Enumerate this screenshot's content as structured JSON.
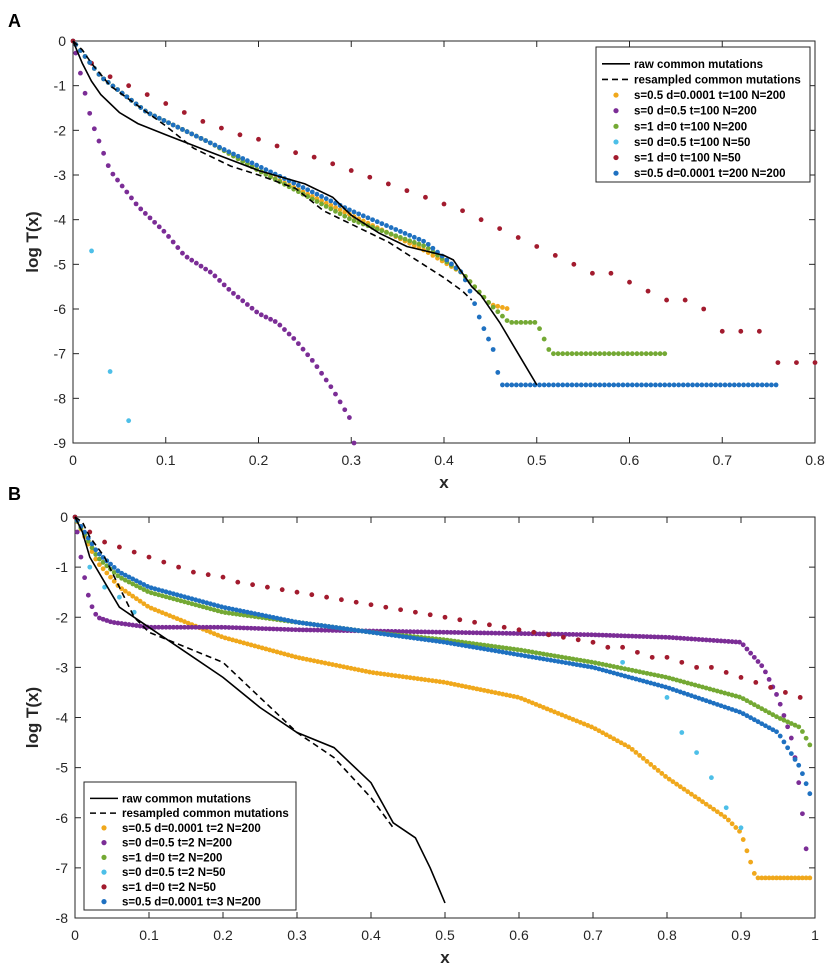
{
  "chart_data": [
    {
      "panel": "A",
      "type": "scatter",
      "xlabel": "x",
      "ylabel": "log T(x)",
      "xlim": [
        0,
        0.8
      ],
      "ylim": [
        -9,
        0
      ],
      "xticks": [
        "0",
        "0.1",
        "0.2",
        "0.3",
        "0.4",
        "0.5",
        "0.6",
        "0.7",
        "0.8"
      ],
      "yticks": [
        "0",
        "-1",
        "-2",
        "-3",
        "-4",
        "-5",
        "-6",
        "-7",
        "-8",
        "-9"
      ],
      "legend_position": "top-right",
      "lines": [
        {
          "name": "raw common mutations",
          "style": "solid",
          "color": "#000000",
          "x": [
            0,
            0.01,
            0.02,
            0.03,
            0.05,
            0.07,
            0.1,
            0.15,
            0.2,
            0.25,
            0.28,
            0.3,
            0.33,
            0.36,
            0.38,
            0.4,
            0.41,
            0.42,
            0.43,
            0.44,
            0.46,
            0.48,
            0.5
          ],
          "y": [
            0,
            -0.5,
            -0.9,
            -1.2,
            -1.6,
            -1.85,
            -2.1,
            -2.5,
            -2.9,
            -3.2,
            -3.5,
            -3.9,
            -4.3,
            -4.6,
            -4.7,
            -4.8,
            -4.9,
            -5.2,
            -5.5,
            -5.7,
            -6.3,
            -7.0,
            -7.7
          ]
        },
        {
          "name": "resampled common mutations",
          "style": "dashed",
          "color": "#000000",
          "x": [
            0,
            0.01,
            0.02,
            0.04,
            0.06,
            0.08,
            0.1,
            0.13,
            0.17,
            0.2,
            0.24,
            0.27,
            0.3,
            0.34,
            0.37,
            0.4,
            0.42,
            0.43
          ],
          "y": [
            0,
            -0.2,
            -0.5,
            -1.0,
            -1.3,
            -1.6,
            -1.9,
            -2.4,
            -2.8,
            -3.0,
            -3.3,
            -3.8,
            -4.1,
            -4.5,
            -4.9,
            -5.3,
            -5.6,
            -5.8
          ]
        }
      ],
      "series": [
        {
          "name": "s=0.5 d=0.0001 t=100 N=200",
          "color": "#f0a81c",
          "x0": 0.003,
          "x1": 0.47,
          "step": 0.005,
          "y": [
            [
              0,
              0
            ],
            [
              0.03,
              -0.8
            ],
            [
              0.08,
              -1.6
            ],
            [
              0.15,
              -2.3
            ],
            [
              0.2,
              -2.9
            ],
            [
              0.3,
              -3.9
            ],
            [
              0.38,
              -4.7
            ],
            [
              0.42,
              -5.2
            ],
            [
              0.45,
              -5.9
            ],
            [
              0.47,
              -6.0
            ]
          ]
        },
        {
          "name": "s=0 d=0.5 t=100 N=200",
          "color": "#7b2d96",
          "x0": 0.003,
          "x1": 0.303,
          "step": 0.005,
          "y": [
            [
              0,
              0
            ],
            [
              0.01,
              -0.9
            ],
            [
              0.02,
              -1.8
            ],
            [
              0.04,
              -2.9
            ],
            [
              0.07,
              -3.7
            ],
            [
              0.1,
              -4.3
            ],
            [
              0.12,
              -4.8
            ],
            [
              0.15,
              -5.2
            ],
            [
              0.17,
              -5.6
            ],
            [
              0.2,
              -6.1
            ],
            [
              0.22,
              -6.3
            ],
            [
              0.24,
              -6.7
            ],
            [
              0.26,
              -7.2
            ],
            [
              0.28,
              -7.8
            ],
            [
              0.3,
              -8.5
            ],
            [
              0.303,
              -9.0
            ]
          ]
        },
        {
          "name": "s=1 d=0 t=100 N=200",
          "color": "#74a934",
          "x0": 0.003,
          "x1": 0.64,
          "step": 0.005,
          "y": [
            [
              0,
              0
            ],
            [
              0.03,
              -0.8
            ],
            [
              0.08,
              -1.6
            ],
            [
              0.15,
              -2.3
            ],
            [
              0.2,
              -2.9
            ],
            [
              0.3,
              -4.0
            ],
            [
              0.38,
              -4.6
            ],
            [
              0.42,
              -5.2
            ],
            [
              0.45,
              -5.9
            ],
            [
              0.47,
              -6.3
            ],
            [
              0.5,
              -6.3
            ],
            [
              0.515,
              -7.0
            ],
            [
              0.64,
              -7.0
            ]
          ]
        },
        {
          "name": "s=0 d=0.5 t=100 N=50",
          "color": "#4dbfe8",
          "x": [
            0.0,
            0.02,
            0.04,
            0.06
          ],
          "y": [
            0,
            -4.7,
            -7.4,
            -8.5
          ]
        },
        {
          "name": "s=1 d=0 t=100 N=50",
          "color": "#a21b2e",
          "x": [
            0.0,
            0.02,
            0.04,
            0.06,
            0.08,
            0.1,
            0.12,
            0.14,
            0.16,
            0.18,
            0.2,
            0.22,
            0.24,
            0.26,
            0.28,
            0.3,
            0.32,
            0.34,
            0.36,
            0.38,
            0.4,
            0.42,
            0.44,
            0.46,
            0.48,
            0.5,
            0.52,
            0.54,
            0.56,
            0.58,
            0.6,
            0.62,
            0.64,
            0.66,
            0.68,
            0.7,
            0.72,
            0.74,
            0.76,
            0.78,
            0.8
          ],
          "y": [
            0,
            -0.5,
            -0.8,
            -1.0,
            -1.2,
            -1.4,
            -1.6,
            -1.8,
            -1.95,
            -2.1,
            -2.2,
            -2.35,
            -2.5,
            -2.6,
            -2.75,
            -2.9,
            -3.05,
            -3.2,
            -3.35,
            -3.5,
            -3.65,
            -3.8,
            -4.0,
            -4.2,
            -4.4,
            -4.6,
            -4.8,
            -5.0,
            -5.2,
            -5.2,
            -5.4,
            -5.6,
            -5.8,
            -5.8,
            -6.0,
            -6.5,
            -6.5,
            -6.5,
            -7.2,
            -7.2,
            -7.2
          ]
        },
        {
          "name": "s=0.5 d=0.0001 t=200 N=200",
          "color": "#1f71c1",
          "x0": 0.003,
          "x1": 0.76,
          "step": 0.005,
          "y": [
            [
              0,
              0
            ],
            [
              0.03,
              -0.8
            ],
            [
              0.08,
              -1.6
            ],
            [
              0.15,
              -2.3
            ],
            [
              0.2,
              -2.8
            ],
            [
              0.3,
              -3.8
            ],
            [
              0.38,
              -4.5
            ],
            [
              0.42,
              -5.2
            ],
            [
              0.43,
              -5.7
            ],
            [
              0.44,
              -6.3
            ],
            [
              0.455,
              -7.0
            ],
            [
              0.46,
              -7.7
            ],
            [
              0.76,
              -7.7
            ]
          ]
        }
      ]
    },
    {
      "panel": "B",
      "type": "scatter",
      "xlabel": "x",
      "ylabel": "log T(x)",
      "xlim": [
        0,
        1
      ],
      "ylim": [
        -8,
        0
      ],
      "xticks": [
        "0",
        "0.1",
        "0.2",
        "0.3",
        "0.4",
        "0.5",
        "0.6",
        "0.7",
        "0.8",
        "0.9",
        "1"
      ],
      "yticks": [
        "0",
        "-1",
        "-2",
        "-3",
        "-4",
        "-5",
        "-6",
        "-7",
        "-8"
      ],
      "legend_position": "bottom-left",
      "lines": [
        {
          "name": "raw common mutations",
          "style": "solid",
          "color": "#000000",
          "x": [
            0,
            0.01,
            0.02,
            0.04,
            0.06,
            0.08,
            0.1,
            0.15,
            0.2,
            0.25,
            0.3,
            0.35,
            0.4,
            0.43,
            0.46,
            0.48,
            0.5
          ],
          "y": [
            0,
            -0.3,
            -0.8,
            -1.3,
            -1.8,
            -2.0,
            -2.2,
            -2.7,
            -3.2,
            -3.8,
            -4.3,
            -4.6,
            -5.3,
            -6.1,
            -6.4,
            -7.0,
            -7.7
          ]
        },
        {
          "name": "resampled common mutations",
          "style": "dashed",
          "color": "#000000",
          "x": [
            0,
            0.01,
            0.02,
            0.04,
            0.06,
            0.08,
            0.1,
            0.15,
            0.2,
            0.25,
            0.3,
            0.35,
            0.4,
            0.43
          ],
          "y": [
            0,
            -0.1,
            -0.4,
            -0.8,
            -1.4,
            -2.0,
            -2.3,
            -2.6,
            -2.9,
            -3.6,
            -4.3,
            -4.8,
            -5.6,
            -6.2
          ]
        }
      ],
      "series": [
        {
          "name": "s=0.5 d=0.0001 t=2 N=200",
          "color": "#f0a81c",
          "x0": 0.003,
          "x1": 0.995,
          "step": 0.005,
          "y": [
            [
              0,
              0
            ],
            [
              0.03,
              -0.9
            ],
            [
              0.06,
              -1.4
            ],
            [
              0.1,
              -1.8
            ],
            [
              0.2,
              -2.4
            ],
            [
              0.3,
              -2.8
            ],
            [
              0.4,
              -3.1
            ],
            [
              0.5,
              -3.3
            ],
            [
              0.6,
              -3.6
            ],
            [
              0.7,
              -4.2
            ],
            [
              0.75,
              -4.6
            ],
            [
              0.8,
              -5.2
            ],
            [
              0.85,
              -5.7
            ],
            [
              0.88,
              -6.0
            ],
            [
              0.9,
              -6.3
            ],
            [
              0.92,
              -7.2
            ],
            [
              0.995,
              -7.2
            ]
          ]
        },
        {
          "name": "s=0 d=0.5 t=2 N=200",
          "color": "#7b2d96",
          "x0": 0.003,
          "x1": 0.99,
          "step": 0.005,
          "y": [
            [
              0,
              0
            ],
            [
              0.01,
              -1.0
            ],
            [
              0.02,
              -1.7
            ],
            [
              0.03,
              -2.0
            ],
            [
              0.05,
              -2.1
            ],
            [
              0.1,
              -2.2
            ],
            [
              0.2,
              -2.2
            ],
            [
              0.3,
              -2.25
            ],
            [
              0.5,
              -2.3
            ],
            [
              0.7,
              -2.35
            ],
            [
              0.8,
              -2.4
            ],
            [
              0.9,
              -2.5
            ],
            [
              0.93,
              -3.0
            ],
            [
              0.95,
              -3.6
            ],
            [
              0.97,
              -4.5
            ],
            [
              0.98,
              -5.5
            ],
            [
              0.99,
              -6.9
            ]
          ]
        },
        {
          "name": "s=1 d=0 t=2 N=200",
          "color": "#74a934",
          "x0": 0.003,
          "x1": 0.995,
          "step": 0.005,
          "y": [
            [
              0,
              0
            ],
            [
              0.03,
              -0.8
            ],
            [
              0.06,
              -1.2
            ],
            [
              0.1,
              -1.5
            ],
            [
              0.2,
              -1.9
            ],
            [
              0.3,
              -2.1
            ],
            [
              0.4,
              -2.3
            ],
            [
              0.5,
              -2.45
            ],
            [
              0.6,
              -2.65
            ],
            [
              0.7,
              -2.9
            ],
            [
              0.8,
              -3.2
            ],
            [
              0.9,
              -3.6
            ],
            [
              0.95,
              -4.0
            ],
            [
              0.98,
              -4.2
            ],
            [
              0.995,
              -4.6
            ]
          ]
        },
        {
          "name": "s=0 d=0.5 t=2 N=50",
          "color": "#4dbfe8",
          "x": [
            0.0,
            0.02,
            0.04,
            0.06,
            0.08,
            0.74,
            0.8,
            0.82,
            0.84,
            0.86,
            0.88,
            0.9
          ],
          "y": [
            0,
            -1.0,
            -1.4,
            -1.6,
            -1.9,
            -2.9,
            -3.6,
            -4.3,
            -4.7,
            -5.2,
            -5.8,
            -6.2
          ]
        },
        {
          "name": "s=1 d=0 t=2 N=50",
          "color": "#a21b2e",
          "x": [
            0.0,
            0.02,
            0.04,
            0.06,
            0.08,
            0.1,
            0.12,
            0.14,
            0.16,
            0.18,
            0.2,
            0.22,
            0.24,
            0.26,
            0.28,
            0.3,
            0.32,
            0.34,
            0.36,
            0.38,
            0.4,
            0.42,
            0.44,
            0.46,
            0.48,
            0.5,
            0.52,
            0.54,
            0.56,
            0.58,
            0.6,
            0.62,
            0.64,
            0.66,
            0.68,
            0.7,
            0.72,
            0.74,
            0.76,
            0.78,
            0.8,
            0.82,
            0.84,
            0.86,
            0.88,
            0.9,
            0.92,
            0.94,
            0.96,
            0.98
          ],
          "y": [
            0,
            -0.3,
            -0.5,
            -0.6,
            -0.7,
            -0.8,
            -0.9,
            -1.0,
            -1.1,
            -1.15,
            -1.2,
            -1.3,
            -1.35,
            -1.4,
            -1.45,
            -1.5,
            -1.55,
            -1.6,
            -1.65,
            -1.7,
            -1.75,
            -1.8,
            -1.85,
            -1.9,
            -1.95,
            -2.0,
            -2.05,
            -2.1,
            -2.15,
            -2.2,
            -2.25,
            -2.3,
            -2.35,
            -2.4,
            -2.45,
            -2.5,
            -2.6,
            -2.6,
            -2.7,
            -2.8,
            -2.8,
            -2.9,
            -3.0,
            -3.0,
            -3.1,
            -3.2,
            -3.3,
            -3.4,
            -3.5,
            -3.6
          ]
        },
        {
          "name": "s=0.5 d=0.0001 t=3 N=200",
          "color": "#1f71c1",
          "x0": 0.003,
          "x1": 0.995,
          "step": 0.005,
          "y": [
            [
              0,
              0
            ],
            [
              0.03,
              -0.7
            ],
            [
              0.06,
              -1.1
            ],
            [
              0.1,
              -1.4
            ],
            [
              0.2,
              -1.8
            ],
            [
              0.3,
              -2.1
            ],
            [
              0.4,
              -2.3
            ],
            [
              0.5,
              -2.5
            ],
            [
              0.6,
              -2.75
            ],
            [
              0.7,
              -3.0
            ],
            [
              0.8,
              -3.4
            ],
            [
              0.9,
              -3.9
            ],
            [
              0.95,
              -4.3
            ],
            [
              0.98,
              -5.0
            ],
            [
              0.995,
              -5.6
            ]
          ]
        }
      ]
    }
  ]
}
